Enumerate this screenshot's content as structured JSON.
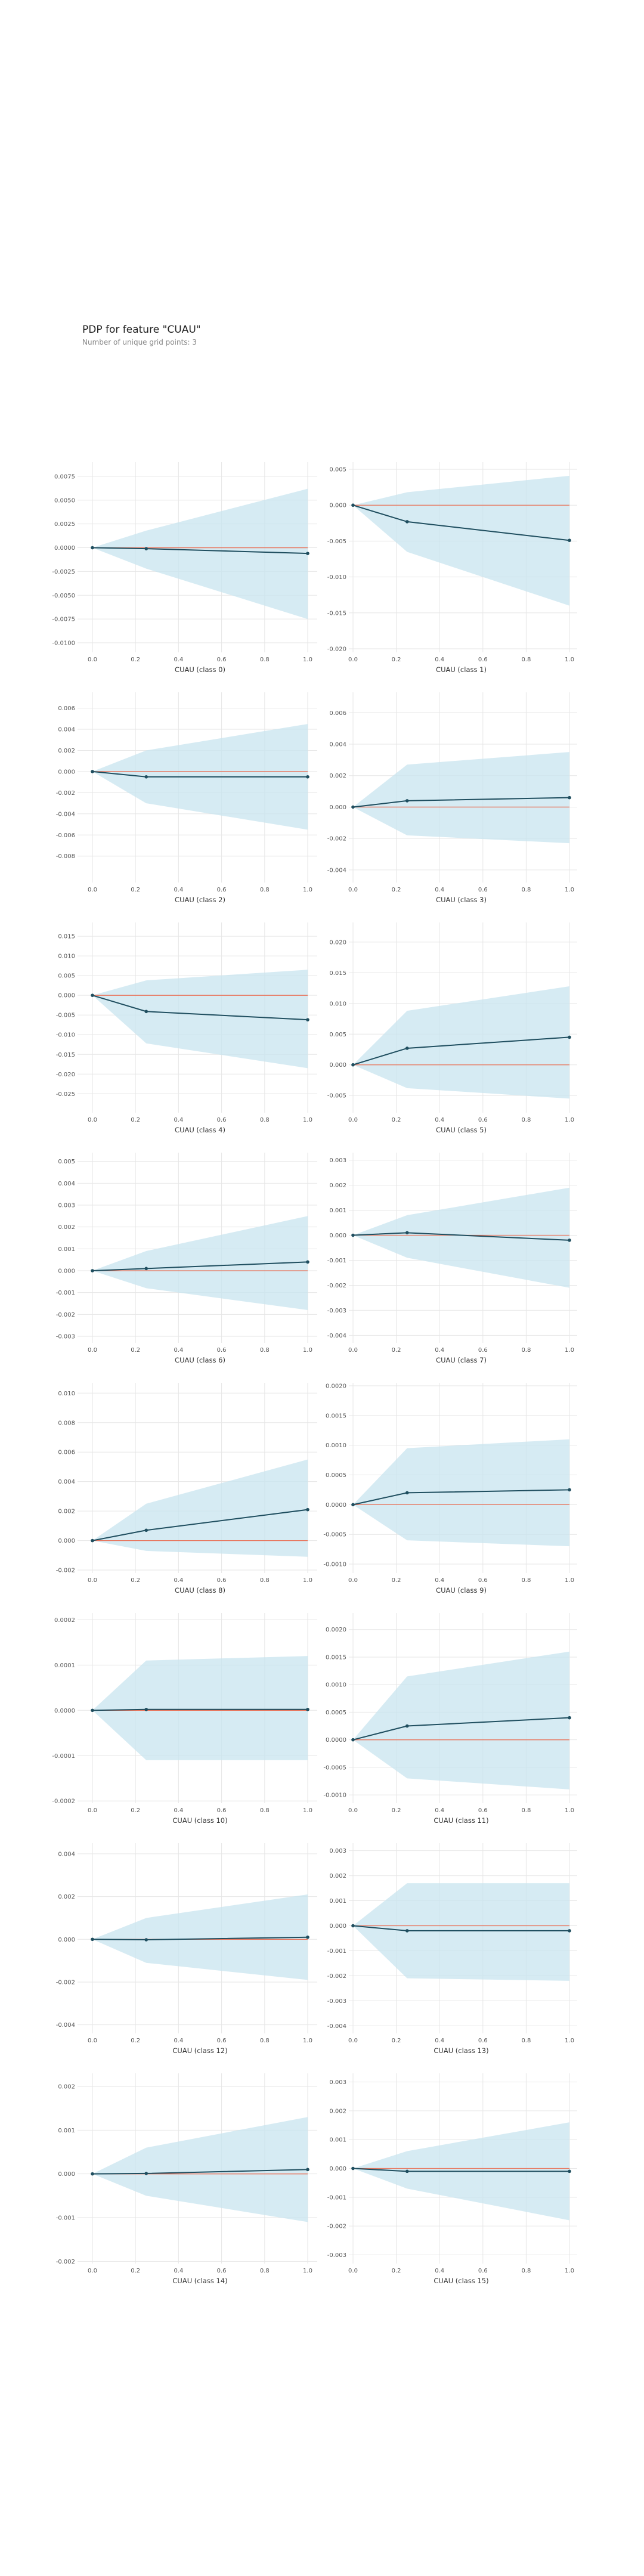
{
  "title": "PDP for feature \"CUAU\"",
  "subtitle": "Number of unique grid points: 3",
  "colors": {
    "band": "#c8e4ef",
    "line": "#1f4e5f",
    "baseline": "#e8735a",
    "grid": "#e6e6e6"
  },
  "chart_data": [
    {
      "type": "line",
      "xlabel": "CUAU (class 0)",
      "x": [
        0,
        0.25,
        1
      ],
      "y": [
        0,
        -0.0001,
        -0.0006
      ],
      "lower": [
        0,
        -0.0022,
        -0.0075
      ],
      "upper": [
        0,
        0.0018,
        0.0062
      ],
      "ylim": [
        -0.011,
        0.009
      ],
      "yticks": [
        -0.01,
        -0.0075,
        -0.005,
        -0.0025,
        0,
        0.0025,
        0.005,
        0.0075
      ],
      "yticklabels": [
        "-0.0100",
        "-0.0075",
        "-0.0050",
        "-0.0025",
        "0.0000",
        "0.0025",
        "0.0050",
        "0.0075"
      ],
      "xticks": [
        0,
        0.2,
        0.4,
        0.6,
        0.8,
        1
      ],
      "xticklabels": [
        "0.0",
        "0.2",
        "0.4",
        "0.6",
        "0.8",
        "1.0"
      ]
    },
    {
      "type": "line",
      "xlabel": "CUAU (class 1)",
      "x": [
        0,
        0.25,
        1
      ],
      "y": [
        0,
        -0.0023,
        -0.0049
      ],
      "lower": [
        0,
        -0.0065,
        -0.014
      ],
      "upper": [
        0,
        0.0018,
        0.0041
      ],
      "ylim": [
        -0.0205,
        0.006
      ],
      "yticks": [
        -0.02,
        -0.015,
        -0.01,
        -0.005,
        0,
        0.005
      ],
      "yticklabels": [
        "-0.020",
        "-0.015",
        "-0.010",
        "-0.005",
        "0.000",
        "0.005"
      ],
      "xticks": [
        0,
        0.2,
        0.4,
        0.6,
        0.8,
        1
      ],
      "xticklabels": [
        "0.0",
        "0.2",
        "0.4",
        "0.6",
        "0.8",
        "1.0"
      ]
    },
    {
      "type": "line",
      "xlabel": "CUAU (class 2)",
      "x": [
        0,
        0.25,
        1
      ],
      "y": [
        0,
        -0.0005,
        -0.0005
      ],
      "lower": [
        0,
        -0.003,
        -0.0055
      ],
      "upper": [
        0,
        0.002,
        0.0045
      ],
      "ylim": [
        -0.0105,
        0.0075
      ],
      "yticks": [
        -0.008,
        -0.006,
        -0.004,
        -0.002,
        0,
        0.002,
        0.004,
        0.006
      ],
      "yticklabels": [
        "-0.008",
        "-0.006",
        "-0.004",
        "-0.002",
        "0.000",
        "0.002",
        "0.004",
        "0.006"
      ],
      "xticks": [
        0,
        0.2,
        0.4,
        0.6,
        0.8,
        1
      ],
      "xticklabels": [
        "0.0",
        "0.2",
        "0.4",
        "0.6",
        "0.8",
        "1.0"
      ]
    },
    {
      "type": "line",
      "xlabel": "CUAU (class 3)",
      "x": [
        0,
        0.25,
        1
      ],
      "y": [
        0,
        0.0004,
        0.0006
      ],
      "lower": [
        0,
        -0.0018,
        -0.0023
      ],
      "upper": [
        0,
        0.0027,
        0.0035
      ],
      "ylim": [
        -0.0048,
        0.0073
      ],
      "yticks": [
        -0.004,
        -0.002,
        0,
        0.002,
        0.004,
        0.006
      ],
      "yticklabels": [
        "-0.004",
        "-0.002",
        "0.000",
        "0.002",
        "0.004",
        "0.006"
      ],
      "xticks": [
        0,
        0.2,
        0.4,
        0.6,
        0.8,
        1
      ],
      "xticklabels": [
        "0.0",
        "0.2",
        "0.4",
        "0.6",
        "0.8",
        "1.0"
      ]
    },
    {
      "type": "line",
      "xlabel": "CUAU (class 4)",
      "x": [
        0,
        0.25,
        1
      ],
      "y": [
        0,
        -0.0041,
        -0.0062
      ],
      "lower": [
        0,
        -0.0122,
        -0.0185
      ],
      "upper": [
        0,
        0.0038,
        0.0065
      ],
      "ylim": [
        -0.0298,
        0.0185
      ],
      "yticks": [
        -0.025,
        -0.02,
        -0.015,
        -0.01,
        -0.005,
        0,
        0.005,
        0.01,
        0.015
      ],
      "yticklabels": [
        "-0.025",
        "-0.020",
        "-0.015",
        "-0.010",
        "-0.005",
        "0.000",
        "0.005",
        "0.010",
        "0.015"
      ],
      "xticks": [
        0,
        0.2,
        0.4,
        0.6,
        0.8,
        1
      ],
      "xticklabels": [
        "0.0",
        "0.2",
        "0.4",
        "0.6",
        "0.8",
        "1.0"
      ]
    },
    {
      "type": "line",
      "xlabel": "CUAU (class 5)",
      "x": [
        0,
        0.25,
        1
      ],
      "y": [
        0,
        0.0027,
        0.0045
      ],
      "lower": [
        0,
        -0.0038,
        -0.0055
      ],
      "upper": [
        0,
        0.0088,
        0.0128
      ],
      "ylim": [
        -0.0078,
        0.0232
      ],
      "yticks": [
        -0.005,
        0,
        0.005,
        0.01,
        0.015,
        0.02
      ],
      "yticklabels": [
        "-0.005",
        "0.000",
        "0.005",
        "0.010",
        "0.015",
        "0.020"
      ],
      "xticks": [
        0,
        0.2,
        0.4,
        0.6,
        0.8,
        1
      ],
      "xticklabels": [
        "0.0",
        "0.2",
        "0.4",
        "0.6",
        "0.8",
        "1.0"
      ]
    },
    {
      "type": "line",
      "xlabel": "CUAU (class 6)",
      "x": [
        0,
        0.25,
        1
      ],
      "y": [
        0,
        0.0001,
        0.0004
      ],
      "lower": [
        0,
        -0.0008,
        -0.0018
      ],
      "upper": [
        0,
        0.0009,
        0.0025
      ],
      "ylim": [
        -0.0033,
        0.0054
      ],
      "yticks": [
        -0.003,
        -0.002,
        -0.001,
        0,
        0.001,
        0.002,
        0.003,
        0.004,
        0.005
      ],
      "yticklabels": [
        "-0.003",
        "-0.002",
        "-0.001",
        "0.000",
        "0.001",
        "0.002",
        "0.003",
        "0.004",
        "0.005"
      ],
      "xticks": [
        0,
        0.2,
        0.4,
        0.6,
        0.8,
        1
      ],
      "xticklabels": [
        "0.0",
        "0.2",
        "0.4",
        "0.6",
        "0.8",
        "1.0"
      ]
    },
    {
      "type": "line",
      "xlabel": "CUAU (class 7)",
      "x": [
        0,
        0.25,
        1
      ],
      "y": [
        0,
        0.0001,
        -0.0002
      ],
      "lower": [
        0,
        -0.0009,
        -0.0021
      ],
      "upper": [
        0,
        0.0008,
        0.0019
      ],
      "ylim": [
        -0.0043,
        0.0033
      ],
      "yticks": [
        -0.004,
        -0.003,
        -0.002,
        -0.001,
        0,
        0.001,
        0.002,
        0.003
      ],
      "yticklabels": [
        "-0.004",
        "-0.003",
        "-0.002",
        "-0.001",
        "0.000",
        "0.001",
        "0.002",
        "0.003"
      ],
      "xticks": [
        0,
        0.2,
        0.4,
        0.6,
        0.8,
        1
      ],
      "xticklabels": [
        "0.0",
        "0.2",
        "0.4",
        "0.6",
        "0.8",
        "1.0"
      ]
    },
    {
      "type": "line",
      "xlabel": "CUAU (class 8)",
      "x": [
        0,
        0.25,
        1
      ],
      "y": [
        0,
        0.0007,
        0.0021
      ],
      "lower": [
        0,
        -0.0007,
        -0.0011
      ],
      "upper": [
        0,
        0.0025,
        0.0055
      ],
      "ylim": [
        -0.0022,
        0.0107
      ],
      "yticks": [
        -0.002,
        0,
        0.002,
        0.004,
        0.006,
        0.008,
        0.01
      ],
      "yticklabels": [
        "-0.002",
        "0.000",
        "0.002",
        "0.004",
        "0.006",
        "0.008",
        "0.010"
      ],
      "xticks": [
        0,
        0.2,
        0.4,
        0.6,
        0.8,
        1
      ],
      "xticklabels": [
        "0.0",
        "0.2",
        "0.4",
        "0.6",
        "0.8",
        "1.0"
      ]
    },
    {
      "type": "line",
      "xlabel": "CUAU (class 9)",
      "x": [
        0,
        0.25,
        1
      ],
      "y": [
        0,
        0.0002,
        0.00025
      ],
      "lower": [
        0,
        -0.0006,
        -0.0007
      ],
      "upper": [
        0,
        0.00095,
        0.0011
      ],
      "ylim": [
        -0.00115,
        0.00205
      ],
      "yticks": [
        -0.001,
        -0.0005,
        0,
        0.0005,
        0.001,
        0.0015,
        0.002
      ],
      "yticklabels": [
        "-0.0010",
        "-0.0005",
        "0.0000",
        "0.0005",
        "0.0010",
        "0.0015",
        "0.0020"
      ],
      "xticks": [
        0,
        0.2,
        0.4,
        0.6,
        0.8,
        1
      ],
      "xticklabels": [
        "0.0",
        "0.2",
        "0.4",
        "0.6",
        "0.8",
        "1.0"
      ]
    },
    {
      "type": "line",
      "xlabel": "CUAU (class 10)",
      "x": [
        0,
        0.25,
        1
      ],
      "y": [
        0,
        2e-06,
        2e-06
      ],
      "lower": [
        0,
        -0.00011,
        -0.00011
      ],
      "upper": [
        0,
        0.00011,
        0.00012
      ],
      "ylim": [
        -0.000205,
        0.000215
      ],
      "yticks": [
        -0.0002,
        -0.0001,
        0,
        0.0001,
        0.0002
      ],
      "yticklabels": [
        "-0.0002",
        "-0.0001",
        "0.0000",
        "0.0001",
        "0.0002"
      ],
      "xticks": [
        0,
        0.2,
        0.4,
        0.6,
        0.8,
        1
      ],
      "xticklabels": [
        "0.0",
        "0.2",
        "0.4",
        "0.6",
        "0.8",
        "1.0"
      ]
    },
    {
      "type": "line",
      "xlabel": "CUAU (class 11)",
      "x": [
        0,
        0.25,
        1
      ],
      "y": [
        0,
        0.00025,
        0.0004
      ],
      "lower": [
        0,
        -0.0007,
        -0.0009
      ],
      "upper": [
        0,
        0.00115,
        0.0016
      ],
      "ylim": [
        -0.00115,
        0.0023
      ],
      "yticks": [
        -0.001,
        -0.0005,
        0,
        0.0005,
        0.001,
        0.0015,
        0.002
      ],
      "yticklabels": [
        "-0.0010",
        "-0.0005",
        "0.0000",
        "0.0005",
        "0.0010",
        "0.0015",
        "0.0020"
      ],
      "xticks": [
        0,
        0.2,
        0.4,
        0.6,
        0.8,
        1
      ],
      "xticklabels": [
        "0.0",
        "0.2",
        "0.4",
        "0.6",
        "0.8",
        "1.0"
      ]
    },
    {
      "type": "line",
      "xlabel": "CUAU (class 12)",
      "x": [
        0,
        0.25,
        1
      ],
      "y": [
        0,
        -2e-05,
        0.0001
      ],
      "lower": [
        0,
        -0.0011,
        -0.0019
      ],
      "upper": [
        0,
        0.001,
        0.0021
      ],
      "ylim": [
        -0.0044,
        0.0045
      ],
      "yticks": [
        -0.004,
        -0.002,
        0,
        0.002,
        0.004
      ],
      "yticklabels": [
        "-0.004",
        "-0.002",
        "0.000",
        "0.002",
        "0.004"
      ],
      "xticks": [
        0,
        0.2,
        0.4,
        0.6,
        0.8,
        1
      ],
      "xticklabels": [
        "0.0",
        "0.2",
        "0.4",
        "0.6",
        "0.8",
        "1.0"
      ]
    },
    {
      "type": "line",
      "xlabel": "CUAU (class 13)",
      "x": [
        0,
        0.25,
        1
      ],
      "y": [
        0,
        -0.0002,
        -0.0002
      ],
      "lower": [
        0,
        -0.0021,
        -0.0022
      ],
      "upper": [
        0,
        0.0017,
        0.0017
      ],
      "ylim": [
        -0.0043,
        0.0033
      ],
      "yticks": [
        -0.004,
        -0.003,
        -0.002,
        -0.001,
        0,
        0.001,
        0.002,
        0.003
      ],
      "yticklabels": [
        "-0.004",
        "-0.003",
        "-0.002",
        "-0.001",
        "0.000",
        "0.001",
        "0.002",
        "0.003"
      ],
      "xticks": [
        0,
        0.2,
        0.4,
        0.6,
        0.8,
        1
      ],
      "xticklabels": [
        "0.0",
        "0.2",
        "0.4",
        "0.6",
        "0.8",
        "1.0"
      ]
    },
    {
      "type": "line",
      "xlabel": "CUAU (class 14)",
      "x": [
        0,
        0.25,
        1
      ],
      "y": [
        0,
        1e-05,
        0.0001
      ],
      "lower": [
        0,
        -0.0005,
        -0.0011
      ],
      "upper": [
        0,
        0.0006,
        0.0013
      ],
      "ylim": [
        -0.00205,
        0.0023
      ],
      "yticks": [
        -0.002,
        -0.001,
        0,
        0.001,
        0.002
      ],
      "yticklabels": [
        "-0.002",
        "-0.001",
        "0.000",
        "0.001",
        "0.002"
      ],
      "xticks": [
        0,
        0.2,
        0.4,
        0.6,
        0.8,
        1
      ],
      "xticklabels": [
        "0.0",
        "0.2",
        "0.4",
        "0.6",
        "0.8",
        "1.0"
      ]
    },
    {
      "type": "line",
      "xlabel": "CUAU (class 15)",
      "x": [
        0,
        0.25,
        1
      ],
      "y": [
        0,
        -0.0001,
        -0.0001
      ],
      "lower": [
        0,
        -0.0007,
        -0.0018
      ],
      "upper": [
        0,
        0.0006,
        0.0016
      ],
      "ylim": [
        -0.0033,
        0.0033
      ],
      "yticks": [
        -0.003,
        -0.002,
        -0.001,
        0,
        0.001,
        0.002,
        0.003
      ],
      "yticklabels": [
        "-0.003",
        "-0.002",
        "-0.001",
        "0.000",
        "0.001",
        "0.002",
        "0.003"
      ],
      "xticks": [
        0,
        0.2,
        0.4,
        0.6,
        0.8,
        1
      ],
      "xticklabels": [
        "0.0",
        "0.2",
        "0.4",
        "0.6",
        "0.8",
        "1.0"
      ]
    }
  ]
}
